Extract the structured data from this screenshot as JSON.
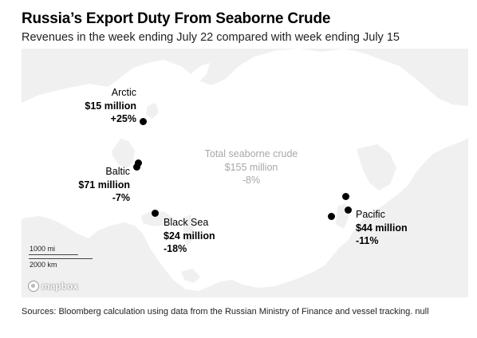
{
  "title": "Russia’s Export Duty From Seaborne Crude",
  "subtitle": "Revenues in the week ending July 22 compared with week ending July 15",
  "regions": {
    "arctic": {
      "name": "Arctic",
      "value": "$15 million",
      "change": "+25%"
    },
    "baltic": {
      "name": "Baltic",
      "value": "$71 million",
      "change": "-7%"
    },
    "black_sea": {
      "name": "Black Sea",
      "value": "$24 million",
      "change": "-18%"
    },
    "pacific": {
      "name": "Pacific",
      "value": "$44 million",
      "change": "-11%"
    }
  },
  "total": {
    "name": "Total seaborne crude",
    "value": "$155 million",
    "change": "-8%"
  },
  "scale": {
    "miles": "1000 mi",
    "km": "2000 km"
  },
  "attribution": "mapbox",
  "source": "Sources: Bloomberg calculation using data from the Russian Ministry of Finance and vessel tracking. null",
  "colors": {
    "land": "#ffffff",
    "water": "#f0f0f0",
    "marker": "#000000",
    "total_text": "#a8a8a8"
  }
}
